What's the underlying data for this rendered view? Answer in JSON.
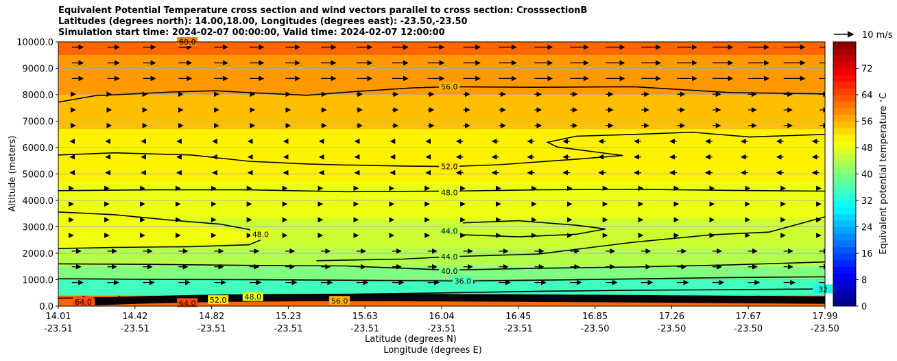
{
  "chart_data": {
    "type": "contour",
    "title_lines": [
      "Equivalent Potential Temperature cross section and wind vectors parallel to cross section: CrosssectionB",
      "Latitudes (degrees north): 14.00,18.00, Longitudes (degrees east): -23.50,-23.50",
      "Simulation start time: 2024-02-07 00:00:00, Valid time: 2024-02-07 12:00:00"
    ],
    "xlabel_lat": "Latitude (degrees N)",
    "xlabel_lon": "Longitude (degrees E)",
    "ylabel": "Altitude (meters)",
    "x_range": [
      14.01,
      17.99
    ],
    "ylim": [
      0,
      10000
    ],
    "x_ticks_lat": [
      "14.01",
      "14.42",
      "14.82",
      "15.23",
      "15.63",
      "16.04",
      "16.45",
      "16.85",
      "17.26",
      "17.67",
      "17.99"
    ],
    "x_ticks_lon": [
      "-23.51",
      "-23.51",
      "-23.51",
      "-23.51",
      "-23.51",
      "-23.51",
      "-23.51",
      "-23.50",
      "-23.50",
      "-23.50",
      "-23.50"
    ],
    "y_ticks": [
      "0.0",
      "1000.0",
      "2000.0",
      "3000.0",
      "4000.0",
      "5000.0",
      "6000.0",
      "7000.0",
      "8000.0",
      "9000.0",
      "10000.0"
    ],
    "colorbar": {
      "label": "Equivalent potential temperature $^\\circ$C",
      "range": [
        0,
        80
      ],
      "ticks": [
        "0",
        "8",
        "16",
        "24",
        "32",
        "40",
        "48",
        "56",
        "64",
        "72"
      ]
    },
    "quiver_key": "10 m/s",
    "contour_labels": [
      {
        "text": "60.0",
        "x": 14.68,
        "alt": 10000
      },
      {
        "text": "56.0",
        "x": 16.04,
        "alt": 8300
      },
      {
        "text": "52.0",
        "x": 16.04,
        "alt": 5280
      },
      {
        "text": "48.0",
        "x": 16.04,
        "alt": 4300
      },
      {
        "text": "48.0",
        "x": 15.06,
        "alt": 2720
      },
      {
        "text": "44.0",
        "x": 16.04,
        "alt": 2850
      },
      {
        "text": "44.0",
        "x": 16.04,
        "alt": 1870
      },
      {
        "text": "40.0",
        "x": 16.04,
        "alt": 1320
      },
      {
        "text": "36.0",
        "x": 16.11,
        "alt": 950
      },
      {
        "text": "32",
        "x": 17.98,
        "alt": 640
      },
      {
        "text": "64.0",
        "x": 14.14,
        "alt": 160
      },
      {
        "text": "64.0",
        "x": 14.68,
        "alt": 120
      },
      {
        "text": "52.0",
        "x": 14.84,
        "alt": 230
      },
      {
        "text": "48.0",
        "x": 15.02,
        "alt": 350
      },
      {
        "text": "56.0",
        "x": 15.47,
        "alt": 200
      }
    ],
    "contours": [
      {
        "level": 56,
        "pts": [
          [
            14.01,
            7720
          ],
          [
            14.2,
            7960
          ],
          [
            14.6,
            8100
          ],
          [
            14.82,
            8150
          ],
          [
            15.0,
            8080
          ],
          [
            15.3,
            7980
          ],
          [
            15.55,
            8120
          ],
          [
            15.85,
            8260
          ],
          [
            16.04,
            8300
          ],
          [
            16.5,
            8280
          ],
          [
            17.0,
            8300
          ],
          [
            17.5,
            8080
          ],
          [
            17.99,
            8030
          ]
        ]
      },
      {
        "level": 52,
        "pts": [
          [
            14.01,
            5720
          ],
          [
            14.3,
            5800
          ],
          [
            14.7,
            5720
          ],
          [
            15.0,
            5480
          ],
          [
            15.3,
            5380
          ],
          [
            15.5,
            5340
          ],
          [
            15.8,
            5300
          ],
          [
            16.04,
            5280
          ],
          [
            16.3,
            5350
          ],
          [
            16.7,
            5560
          ],
          [
            16.94,
            5700
          ],
          [
            16.6,
            6020
          ],
          [
            16.55,
            6200
          ],
          [
            16.7,
            6430
          ],
          [
            17.0,
            6500
          ],
          [
            17.3,
            6580
          ],
          [
            17.6,
            6400
          ],
          [
            17.99,
            6500
          ]
        ]
      },
      {
        "level": 48,
        "pts": [
          [
            14.01,
            4370
          ],
          [
            14.5,
            4400
          ],
          [
            15.0,
            4400
          ],
          [
            15.5,
            4330
          ],
          [
            16.04,
            4350
          ],
          [
            16.5,
            4400
          ],
          [
            17.0,
            4420
          ],
          [
            17.5,
            4380
          ],
          [
            17.99,
            4350
          ]
        ]
      },
      {
        "level": 48,
        "pts": [
          [
            14.01,
            3560
          ],
          [
            14.3,
            3460
          ],
          [
            14.6,
            3250
          ],
          [
            14.85,
            3100
          ],
          [
            15.0,
            2900
          ],
          [
            15.06,
            2650
          ]
        ]
      },
      {
        "level": 48,
        "pts": [
          [
            14.01,
            2180
          ],
          [
            14.3,
            2220
          ],
          [
            14.7,
            2250
          ],
          [
            15.0,
            2320
          ],
          [
            15.06,
            2500
          ]
        ]
      },
      {
        "level": 44,
        "pts": [
          [
            16.11,
            3150
          ],
          [
            16.4,
            3230
          ],
          [
            16.7,
            3060
          ],
          [
            16.85,
            2920
          ],
          [
            16.7,
            2720
          ],
          [
            16.4,
            2620
          ],
          [
            16.11,
            2700
          ]
        ]
      },
      {
        "level": 44,
        "pts": [
          [
            15.35,
            1720
          ],
          [
            15.8,
            1780
          ],
          [
            16.04,
            1870
          ],
          [
            16.5,
            1970
          ],
          [
            17.0,
            2420
          ],
          [
            17.4,
            2700
          ],
          [
            17.7,
            2800
          ],
          [
            17.99,
            3380
          ]
        ]
      },
      {
        "level": 40,
        "pts": [
          [
            14.01,
            1600
          ],
          [
            14.5,
            1580
          ],
          [
            15.0,
            1540
          ],
          [
            15.5,
            1520
          ],
          [
            16.04,
            1360
          ],
          [
            16.5,
            1430
          ],
          [
            17.0,
            1480
          ],
          [
            17.5,
            1560
          ],
          [
            17.99,
            1670
          ]
        ]
      },
      {
        "level": 36,
        "pts": [
          [
            14.01,
            1040
          ],
          [
            14.5,
            1010
          ],
          [
            15.0,
            1000
          ],
          [
            15.5,
            980
          ],
          [
            16.11,
            950
          ],
          [
            16.6,
            990
          ],
          [
            17.0,
            1030
          ],
          [
            17.5,
            1080
          ],
          [
            17.99,
            1110
          ]
        ]
      },
      {
        "level": 32,
        "pts": [
          [
            14.01,
            300
          ],
          [
            14.5,
            330
          ],
          [
            15.0,
            380
          ],
          [
            15.5,
            450
          ],
          [
            16.0,
            500
          ],
          [
            16.5,
            560
          ],
          [
            17.0,
            600
          ],
          [
            17.5,
            620
          ],
          [
            17.99,
            650
          ]
        ]
      }
    ]
  }
}
